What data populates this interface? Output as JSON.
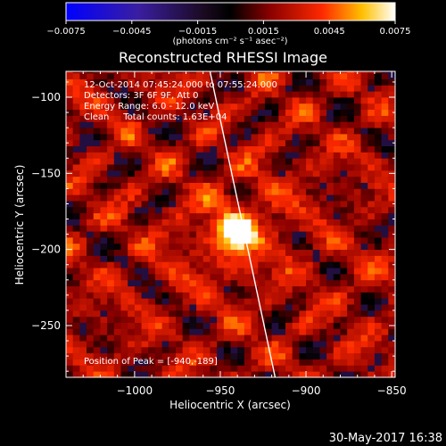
{
  "window_title": "Reconstructed RHESSI Image",
  "colorbar": {
    "tick_labels": [
      "−0.0075",
      "−0.0045",
      "−0.0015",
      "0.0015",
      "0.0045",
      "0.0075"
    ],
    "unit_label": "(photons cm⁻² s⁻¹ asec⁻²)",
    "range": [
      -0.0075,
      0.0075
    ]
  },
  "info": {
    "time_range": "12-Oct-2014 07:45:24.000 to 07:55:24.000",
    "detectors": "Detectors: 3F 6F 9F, Att 0",
    "energy_range": "Energy Range: 6.0 - 12.0 keV",
    "method_counts": "Clean     Total counts: 1.63E+04"
  },
  "peak_label": "Position of Peak = [-940,-189]",
  "footer_date": "30-May-2017 16:38",
  "colors": {
    "background": "#000000",
    "text": "#ffffff",
    "limb": "#ffffff"
  },
  "chart_data": {
    "type": "heatmap",
    "title": "Reconstructed RHESSI Image",
    "xlabel": "Heliocentric X (arcsec)",
    "ylabel": "Heliocentric Y (arcsec)",
    "xlim": [
      -1040,
      -848
    ],
    "ylim": [
      -284,
      -83
    ],
    "x_ticks": [
      -1000,
      -950,
      -900,
      -850
    ],
    "x_tick_labels": [
      "−1000",
      "−950",
      "−900",
      "−850"
    ],
    "y_ticks": [
      -100,
      -150,
      -200,
      -250
    ],
    "y_tick_labels": [
      "−100",
      "−150",
      "−200",
      "−250"
    ],
    "peak": {
      "x": -940,
      "y": -189,
      "value": 0.0075
    },
    "limb_line": [
      [
        -956,
        -83
      ],
      [
        -918,
        -284
      ]
    ],
    "colormap": "rhessi (blue-purple-black-red-yellow-white)",
    "value_range": [
      -0.0075,
      0.0075
    ]
  }
}
